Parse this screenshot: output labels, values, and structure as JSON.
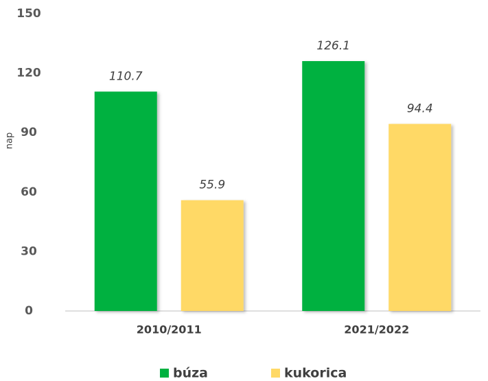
{
  "chart_data": {
    "type": "bar",
    "y_label": "nap",
    "categories": [
      "2010/2011",
      "2021/2022"
    ],
    "series": [
      {
        "name": "búza",
        "color": "#00b140",
        "values": [
          110.7,
          126.1
        ]
      },
      {
        "name": "kukorica",
        "color": "#ffd966",
        "values": [
          55.9,
          94.4
        ]
      }
    ],
    "ylim": [
      0,
      150
    ],
    "yticks": [
      0,
      30,
      60,
      90,
      120,
      150
    ],
    "grid": false,
    "legend": "bottom"
  }
}
